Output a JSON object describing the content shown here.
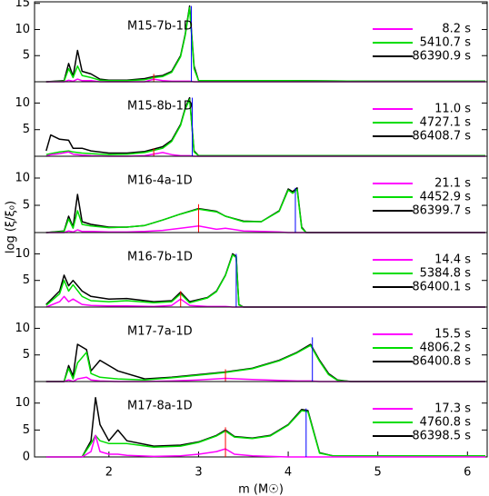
{
  "ylabel": "log (ξ/ξ₀)",
  "chart_data": [
    {
      "type": "line",
      "title": "M15-7b-1D",
      "xlim": [
        1.17,
        6.22
      ],
      "ylim": [
        0,
        15.3
      ],
      "yticks": [
        5,
        10,
        15
      ],
      "x": [
        1.3,
        1.5,
        1.55,
        1.6,
        1.65,
        1.7,
        1.8,
        1.9,
        2.0,
        2.2,
        2.4,
        2.5,
        2.6,
        2.7,
        2.8,
        2.85,
        2.9,
        2.95,
        3.0,
        3.5,
        4.0,
        5.0,
        6.2
      ],
      "series": [
        {
          "name": "8.2 s",
          "color": "#ff00ff",
          "values": [
            0,
            0,
            0.3,
            0.1,
            0.5,
            0.2,
            0.2,
            0,
            0,
            0,
            0,
            0.5,
            0.2,
            0.1,
            0.1,
            0.1,
            0.1,
            0,
            0,
            0,
            0,
            0,
            0
          ]
        },
        {
          "name": "5410.7 s",
          "color": "#00dd00",
          "values": [
            0,
            0.1,
            2.5,
            0.8,
            3,
            1.2,
            0.8,
            0.3,
            0.2,
            0.2,
            0.4,
            0.8,
            1,
            1.8,
            4.8,
            8.8,
            14.2,
            2.5,
            0.2,
            0.2,
            0.2,
            0.1,
            0.1
          ]
        },
        {
          "name": "86390.9 s",
          "color": "#000000",
          "values": [
            0,
            0.2,
            3.5,
            1,
            6,
            2,
            1.5,
            0.5,
            0.3,
            0.3,
            0.6,
            1,
            1.2,
            2,
            5,
            9,
            14.5,
            3,
            0.2,
            0.2,
            0.2,
            0.1,
            0.1
          ]
        }
      ],
      "markers": [
        {
          "x": 2.5,
          "y": 1.5,
          "color": "#ff0000"
        },
        {
          "x": 2.92,
          "y": 14.5,
          "color": "#0000ff"
        }
      ]
    },
    {
      "type": "line",
      "title": "M15-8b-1D",
      "xlim": [
        1.17,
        6.22
      ],
      "ylim": [
        0,
        14
      ],
      "yticks": [
        5,
        10
      ],
      "x": [
        1.3,
        1.35,
        1.45,
        1.55,
        1.6,
        1.7,
        1.8,
        2.0,
        2.2,
        2.4,
        2.6,
        2.7,
        2.8,
        2.85,
        2.9,
        2.95,
        3.0,
        4.0,
        5.0,
        6.2
      ],
      "series": [
        {
          "name": "11.0 s",
          "color": "#ff00ff",
          "values": [
            0,
            0.3,
            0.5,
            0.8,
            0.4,
            0.2,
            0.1,
            0,
            0,
            0.1,
            0.7,
            0.3,
            0.1,
            0.1,
            0.1,
            0,
            0,
            0,
            0,
            0
          ]
        },
        {
          "name": "4727.1 s",
          "color": "#00dd00",
          "values": [
            0.3,
            0.5,
            0.8,
            1,
            0.8,
            0.6,
            0.5,
            0.3,
            0.4,
            0.7,
            1.5,
            2.8,
            5.8,
            8.8,
            10.7,
            0.8,
            0.1,
            0.1,
            0.1,
            0.1
          ]
        },
        {
          "name": "86408.7 s",
          "color": "#000000",
          "values": [
            1,
            4,
            3.2,
            3,
            1.5,
            1.5,
            1,
            0.6,
            0.6,
            0.9,
            1.8,
            3,
            6,
            9,
            11,
            1,
            0.1,
            0.1,
            0.1,
            0.1
          ]
        }
      ],
      "markers": [
        {
          "x": 2.5,
          "y": 1.5,
          "color": "#ff0000"
        },
        {
          "x": 2.93,
          "y": 11,
          "color": "#0000ff"
        }
      ]
    },
    {
      "type": "line",
      "title": "M16-4a-1D",
      "xlim": [
        1.17,
        6.22
      ],
      "ylim": [
        0,
        14
      ],
      "yticks": [
        5,
        10
      ],
      "x": [
        1.3,
        1.5,
        1.55,
        1.6,
        1.65,
        1.7,
        1.8,
        2.0,
        2.2,
        2.4,
        2.6,
        2.8,
        3.0,
        3.2,
        3.3,
        3.5,
        3.7,
        3.9,
        4.0,
        4.05,
        4.1,
        4.15,
        4.2,
        5.0,
        6.2
      ],
      "series": [
        {
          "name": "21.1 s",
          "color": "#ff00ff",
          "values": [
            0,
            0,
            0.3,
            0.1,
            0.5,
            0.2,
            0.2,
            0.1,
            0.1,
            0.2,
            0.4,
            0.8,
            1.2,
            0.6,
            0.8,
            0.3,
            0.2,
            0.1,
            0,
            0,
            0,
            0,
            0,
            0,
            0
          ]
        },
        {
          "name": "4452.9 s",
          "color": "#00dd00",
          "values": [
            0,
            0.2,
            2.5,
            0.8,
            4,
            1.5,
            1.2,
            0.9,
            1,
            1.3,
            2.3,
            3.4,
            4.3,
            3.8,
            3,
            2,
            2,
            3.9,
            7.8,
            7.2,
            7.9,
            0.8,
            0,
            0,
            0
          ]
        },
        {
          "name": "86399.7 s",
          "color": "#000000",
          "values": [
            0,
            0.3,
            3,
            1,
            7,
            2,
            1.5,
            1,
            1,
            1.3,
            2.3,
            3.4,
            4.4,
            3.9,
            3,
            2.1,
            2,
            4,
            8,
            7.5,
            8.2,
            1,
            0,
            0,
            0
          ]
        }
      ],
      "markers": [
        {
          "x": 3.0,
          "y": 5.2,
          "color": "#ff0000"
        },
        {
          "x": 4.08,
          "y": 8.2,
          "color": "#0000ff"
        }
      ]
    },
    {
      "type": "line",
      "title": "M16-7b-1D",
      "xlim": [
        1.17,
        6.22
      ],
      "ylim": [
        0,
        14
      ],
      "yticks": [
        5,
        10
      ],
      "x": [
        1.3,
        1.45,
        1.5,
        1.55,
        1.6,
        1.7,
        1.8,
        2.0,
        2.2,
        2.5,
        2.7,
        2.8,
        2.9,
        3.1,
        3.2,
        3.3,
        3.38,
        3.42,
        3.45,
        3.5,
        4.0,
        5.0,
        6.2
      ],
      "series": [
        {
          "name": "14.4 s",
          "color": "#ff00ff",
          "values": [
            0,
            1,
            2,
            1,
            1.5,
            0.5,
            0.3,
            0.2,
            0.2,
            0.1,
            0.3,
            1.5,
            0.3,
            0.1,
            0.1,
            0.1,
            0,
            0,
            0,
            0,
            0,
            0,
            0
          ]
        },
        {
          "name": "5384.8 s",
          "color": "#00dd00",
          "values": [
            0.3,
            2.5,
            5,
            3,
            4.2,
            2,
            1.2,
            1,
            1.2,
            0.8,
            1,
            2.5,
            0.8,
            1.7,
            2.9,
            5.9,
            9.8,
            9.3,
            0.4,
            0,
            0,
            0,
            0
          ]
        },
        {
          "name": "86400.1 s",
          "color": "#000000",
          "values": [
            0.5,
            3,
            6,
            4,
            5,
            3,
            2,
            1.5,
            1.6,
            1,
            1.2,
            2.8,
            1,
            1.8,
            3,
            6,
            10,
            9.5,
            0.5,
            0,
            0,
            0,
            0
          ]
        }
      ],
      "markers": [
        {
          "x": 2.8,
          "y": 3,
          "color": "#ff0000"
        },
        {
          "x": 3.42,
          "y": 10,
          "color": "#0000ff"
        }
      ]
    },
    {
      "type": "line",
      "title": "M17-7a-1D",
      "xlim": [
        1.17,
        6.22
      ],
      "ylim": [
        0,
        14
      ],
      "yticks": [
        5,
        10
      ],
      "x": [
        1.3,
        1.5,
        1.55,
        1.6,
        1.65,
        1.75,
        1.8,
        1.9,
        2.1,
        2.4,
        2.7,
        3.0,
        3.3,
        3.6,
        3.9,
        4.1,
        4.25,
        4.35,
        4.45,
        4.55,
        4.7,
        5.0,
        6.2
      ],
      "series": [
        {
          "name": "15.5 s",
          "color": "#ff00ff",
          "values": [
            0,
            0,
            0.3,
            0,
            0.5,
            0.8,
            0.3,
            0.1,
            0,
            0,
            0.1,
            0.3,
            0.6,
            0.4,
            0.2,
            0.1,
            0.1,
            0,
            0,
            0,
            0,
            0,
            0
          ]
        },
        {
          "name": "4806.2 s",
          "color": "#00dd00",
          "values": [
            0,
            0,
            2.5,
            0.5,
            3.5,
            5.5,
            1.5,
            0.8,
            0.5,
            0.3,
            0.7,
            1.2,
            1.7,
            2.4,
            3.9,
            5.4,
            6.8,
            3.8,
            1.3,
            0.2,
            0,
            0,
            0
          ]
        },
        {
          "name": "86400.8 s",
          "color": "#000000",
          "values": [
            0,
            0,
            3,
            1,
            7,
            6,
            2,
            4,
            2,
            0.5,
            0.8,
            1.3,
            1.8,
            2.5,
            4,
            5.5,
            7,
            4,
            1.5,
            0.3,
            0,
            0,
            0
          ]
        }
      ],
      "markers": [
        {
          "x": 3.3,
          "y": 2.3,
          "color": "#ff0000"
        },
        {
          "x": 4.27,
          "y": 8.3,
          "color": "#0000ff"
        }
      ]
    },
    {
      "type": "line",
      "title": "M17-8a-1D",
      "xlim": [
        1.17,
        6.22
      ],
      "ylim": [
        0,
        14
      ],
      "yticks": [
        0,
        5,
        10
      ],
      "xticks": [
        2,
        3,
        4,
        5,
        6
      ],
      "xlabel": "m (M☉)",
      "x": [
        1.3,
        1.7,
        1.8,
        1.85,
        1.9,
        2.0,
        2.1,
        2.2,
        2.5,
        2.8,
        3.0,
        3.2,
        3.3,
        3.4,
        3.6,
        3.8,
        4.0,
        4.15,
        4.22,
        4.28,
        4.35,
        4.5,
        5.0,
        6.2
      ],
      "series": [
        {
          "name": "17.3 s",
          "color": "#ff00ff",
          "values": [
            0,
            0,
            1,
            4,
            1,
            0.5,
            0.5,
            0.3,
            0.1,
            0.2,
            0.5,
            1,
            1.5,
            0.5,
            0.2,
            0.1,
            0,
            0,
            0,
            0,
            0,
            0,
            0,
            0
          ]
        },
        {
          "name": "4760.8 s",
          "color": "#00dd00",
          "values": [
            0,
            0,
            2.5,
            4,
            3,
            2.5,
            2.5,
            2.5,
            1.8,
            2,
            2.7,
            3.9,
            4.8,
            3.7,
            3.4,
            3.9,
            5.9,
            8.6,
            8.4,
            4.8,
            0.7,
            0.2,
            0.2,
            0.2
          ]
        },
        {
          "name": "86398.5 s",
          "color": "#000000",
          "values": [
            0,
            0,
            3,
            11,
            6,
            3,
            5,
            3,
            2,
            2.2,
            2.8,
            4,
            5,
            3.8,
            3.5,
            4,
            6,
            8.8,
            8.6,
            5,
            0.8,
            0.2,
            0.2,
            0.2
          ]
        }
      ],
      "markers": [
        {
          "x": 3.3,
          "y": 5.5,
          "color": "#ff0000"
        },
        {
          "x": 4.2,
          "y": 9,
          "color": "#0000ff"
        }
      ]
    }
  ]
}
